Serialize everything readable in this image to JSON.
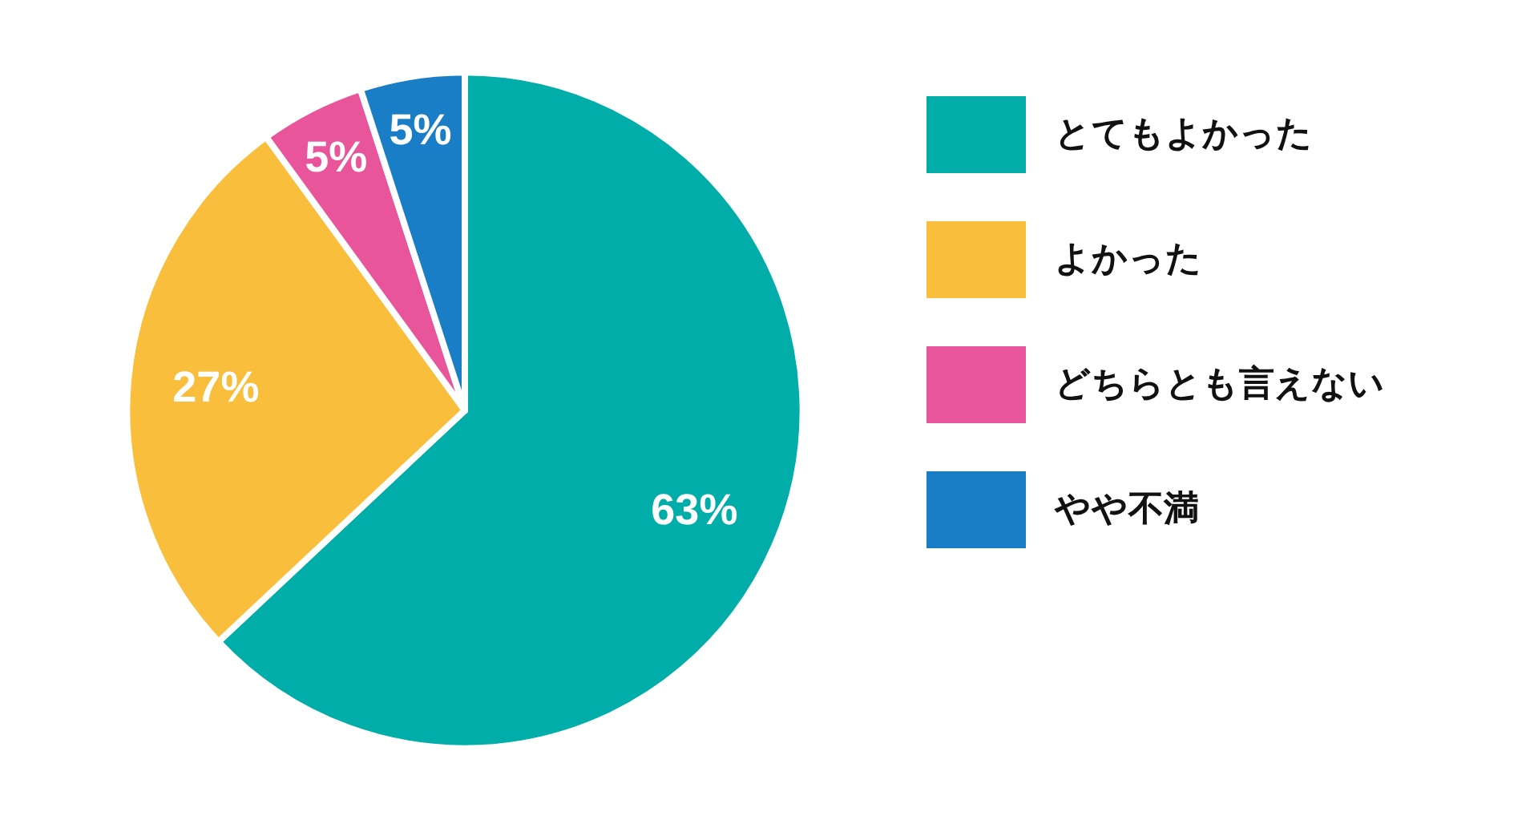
{
  "chart_data": {
    "type": "pie",
    "categories": [
      "とてもよかった",
      "よかった",
      "どちらとも言えない",
      "やや不満"
    ],
    "values": [
      63,
      27,
      5,
      5
    ],
    "colors": [
      "#00ada9",
      "#f9bf3c",
      "#e8559a",
      "#1a7ec6"
    ],
    "value_labels": [
      "63%",
      "27%",
      "5%",
      "5%"
    ],
    "legend": "right"
  }
}
